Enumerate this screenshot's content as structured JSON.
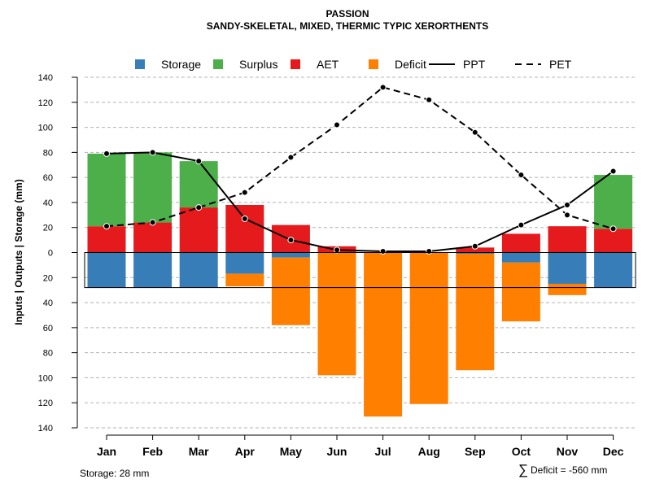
{
  "chart_data": {
    "type": "bar",
    "title": "PASSION",
    "subtitle": "SANDY-SKELETAL, MIXED, THERMIC TYPIC XERORTHENTS",
    "ylabel": "Inputs | Outputs | Storage    (mm)",
    "ylim": [
      -140,
      140
    ],
    "yticks": [
      140,
      120,
      100,
      80,
      60,
      40,
      20,
      0,
      -20,
      -40,
      -60,
      -80,
      -100,
      -120,
      -140
    ],
    "grid": "horizontal dashed",
    "legend_position": "top",
    "categories": [
      "Jan",
      "Feb",
      "Mar",
      "Apr",
      "May",
      "Jun",
      "Jul",
      "Aug",
      "Sep",
      "Oct",
      "Nov",
      "Dec"
    ],
    "stacked_positive": [
      {
        "name": "AET",
        "color": "#E41A1C",
        "values": [
          21,
          24,
          36,
          38,
          22,
          5,
          0,
          0,
          4,
          15,
          21,
          19
        ]
      },
      {
        "name": "Surplus",
        "color": "#4DAF4A",
        "values": [
          58,
          56,
          37,
          0,
          0,
          0,
          0,
          0,
          0,
          0,
          0,
          43
        ]
      }
    ],
    "stacked_negative": [
      {
        "name": "Storage",
        "color": "#377EB8",
        "values": [
          28,
          28,
          28,
          17,
          4,
          0,
          0,
          0,
          1,
          8,
          25,
          28
        ]
      },
      {
        "name": "Deficit",
        "color": "#FF7F00",
        "values": [
          0,
          0,
          0,
          10,
          54,
          98,
          131,
          121,
          93,
          47,
          9,
          0
        ]
      }
    ],
    "lines": [
      {
        "name": "PPT",
        "style": "solid",
        "values": [
          79,
          80,
          73,
          27,
          10,
          2,
          1,
          1,
          5,
          22,
          38,
          65
        ]
      },
      {
        "name": "PET",
        "style": "dashed",
        "values": [
          21,
          24,
          36,
          48,
          76,
          102,
          132,
          122,
          96,
          62,
          30,
          19
        ]
      }
    ],
    "legend": [
      {
        "label": "Storage",
        "kind": "square",
        "color": "#377EB8"
      },
      {
        "label": "Surplus",
        "kind": "square",
        "color": "#4DAF4A"
      },
      {
        "label": "AET",
        "kind": "square",
        "color": "#E41A1C"
      },
      {
        "label": "Deficit",
        "kind": "square",
        "color": "#FF7F00"
      },
      {
        "label": "PPT",
        "kind": "solid-line",
        "color": "#000000"
      },
      {
        "label": "PET",
        "kind": "dashed-line",
        "color": "#000000"
      }
    ],
    "storage_capacity": 28,
    "footer_left": "Storage: 28 mm",
    "footer_right_symbol": "∑",
    "footer_right": "Deficit = -560 mm"
  }
}
